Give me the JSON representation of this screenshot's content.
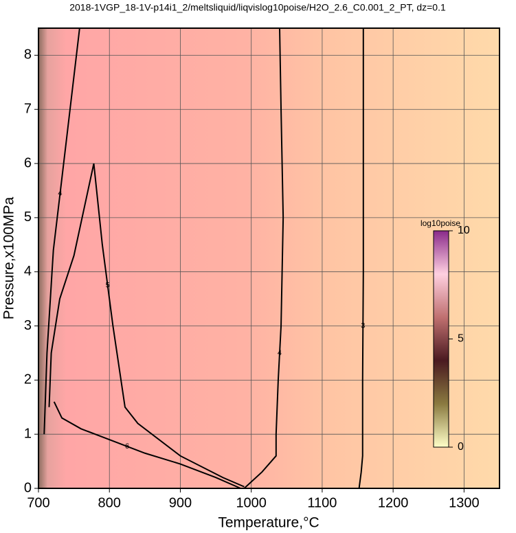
{
  "chart_data": {
    "type": "contour",
    "title": "2018-1VGP_18-1V-p14i1_2/meltsliquid/liqvislog10poise/H2O_2.6_C0.001_2_PT, dz=0.1",
    "x_label": "Temperature,°C",
    "y_label": "Pressure,x100MPa",
    "xlim": [
      700,
      1350
    ],
    "ylim": [
      0,
      8.5
    ],
    "xticks": [
      700,
      800,
      900,
      1000,
      1100,
      1200,
      1300
    ],
    "yticks": [
      0,
      1,
      2,
      3,
      4,
      5,
      6,
      7,
      8
    ],
    "grid": true,
    "colorbar": {
      "label": "log10poise",
      "lim": [
        0,
        10
      ],
      "ticks": [
        0,
        5,
        10
      ]
    },
    "contours": [
      {
        "level": 3,
        "x": [
          1158,
          1158,
          1158,
          1157,
          1157,
          1155,
          1152
        ],
        "y": [
          8.5,
          6,
          4,
          2,
          0.6,
          0.3,
          0
        ]
      },
      {
        "level": 4,
        "x": [
          1040,
          1042,
          1045,
          1042,
          1038,
          1035,
          1035,
          1015,
          990
        ],
        "y": [
          8.5,
          7,
          5,
          3,
          2,
          1,
          0.6,
          0.3,
          0
        ]
      },
      {
        "level": 5,
        "x": [
          715,
          718,
          730,
          750,
          778,
          790,
          805,
          822,
          840,
          900,
          960,
          990
        ],
        "y": [
          1.5,
          2.5,
          3.5,
          4.3,
          6.0,
          4.5,
          3.0,
          1.5,
          1.2,
          0.6,
          0.2,
          0.03
        ]
      },
      {
        "level": 6,
        "x": [
          722,
          733,
          760,
          800,
          850,
          900,
          950,
          985
        ],
        "y": [
          1.6,
          1.3,
          1.1,
          0.9,
          0.65,
          0.45,
          0.2,
          0
        ]
      },
      {
        "level": 4,
        "x": [
          758,
          740,
          721,
          712,
          708
        ],
        "y": [
          8.5,
          6.5,
          4.4,
          2.5,
          1.0
        ]
      }
    ]
  }
}
